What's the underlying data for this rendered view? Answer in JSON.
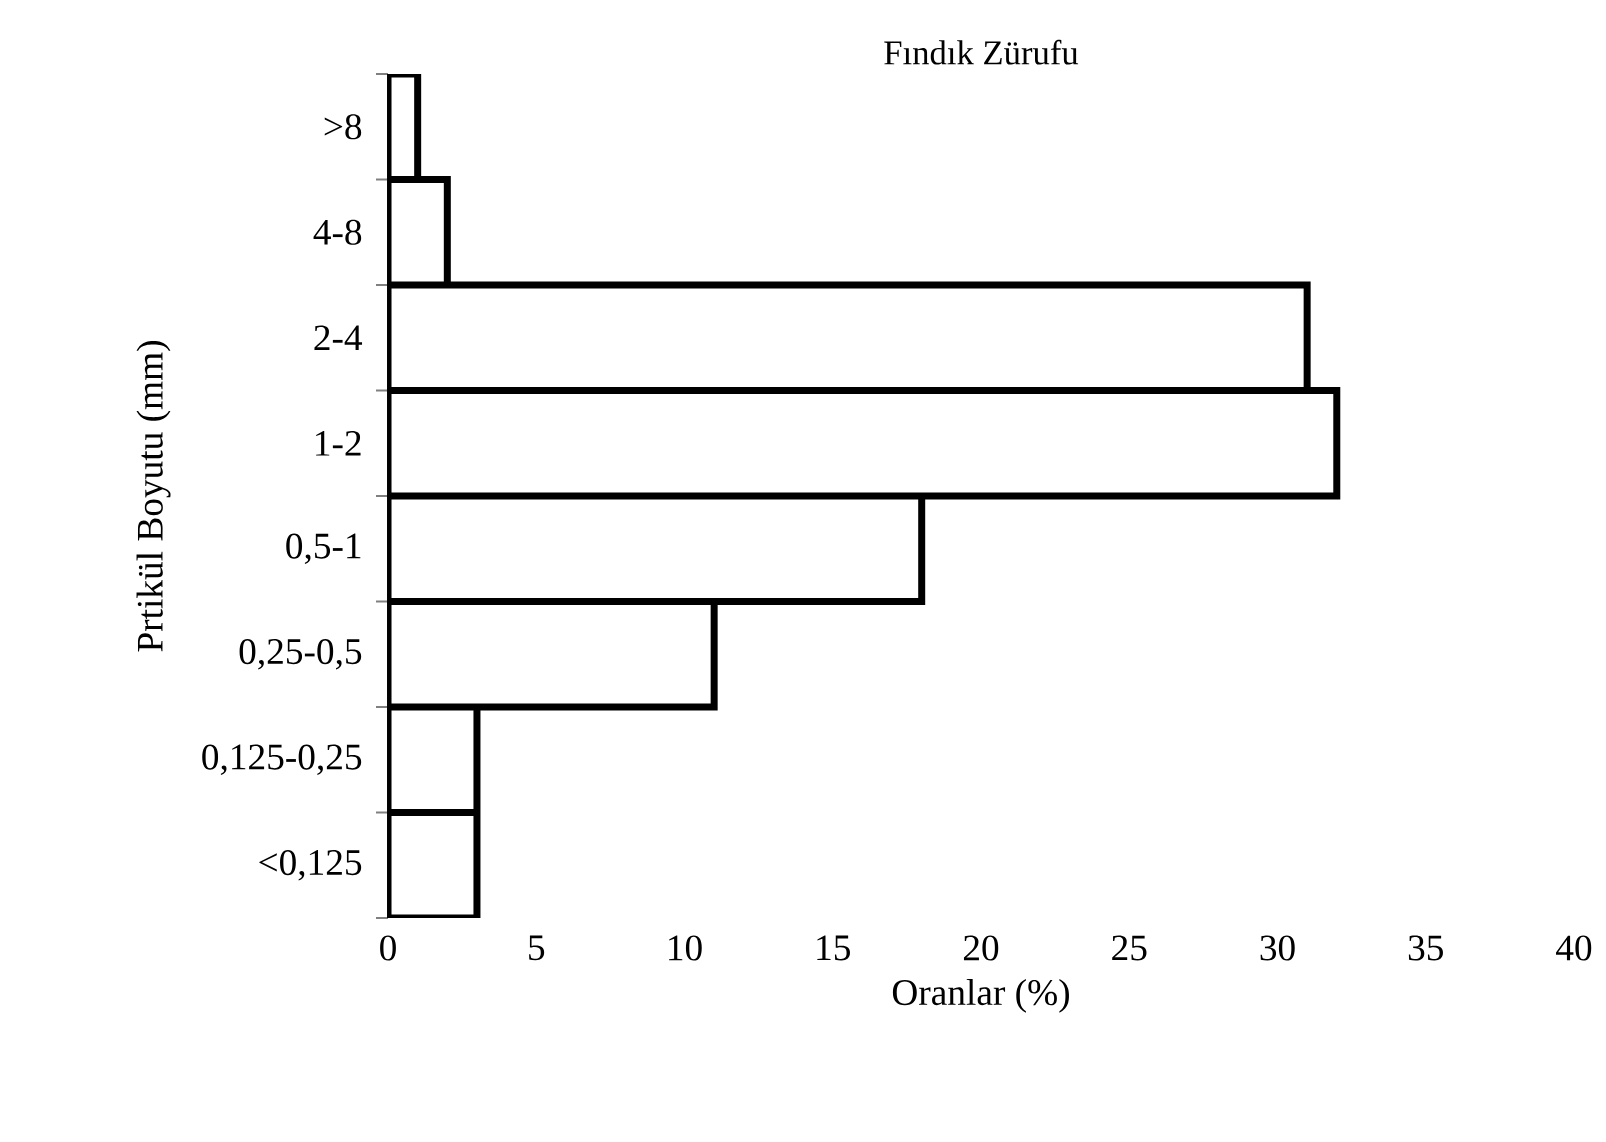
{
  "chart_data": {
    "type": "bar",
    "orientation": "horizontal",
    "title": "Fındık Zürufu",
    "xlabel": "Oranlar (%)",
    "ylabel": "Prtikül Boyutu  (mm)",
    "categories": [
      ">8",
      "4-8",
      "2-4",
      "1-2",
      "0,5-1",
      "0,25-0,5",
      "0,125-0,25",
      "<0,125"
    ],
    "values": [
      1,
      2,
      31,
      32,
      18,
      11,
      3,
      3
    ],
    "color": "#ffffff",
    "xlim": [
      0,
      40
    ],
    "xticks": [
      0,
      5,
      10,
      15,
      20,
      25,
      30,
      35,
      40
    ]
  }
}
